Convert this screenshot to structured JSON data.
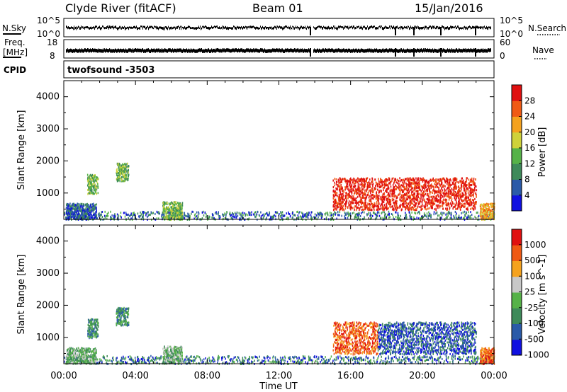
{
  "header": {
    "station": "Clyde River (fitACF)",
    "beam": "Beam 01",
    "date": "15/Jan/2016"
  },
  "top_panels": {
    "nsky_label": "N.Sky",
    "nsky_ticks": [
      "10^5",
      "10^0"
    ],
    "nsearch_label": "N.Search",
    "nsearch_ticks": [
      "10^5",
      "10^0"
    ],
    "freq_label_1": "Freq.",
    "freq_label_2": "[MHz]",
    "freq_ticks": [
      "18",
      "8"
    ],
    "nave_label": "Nave",
    "nave_ticks": [
      "60",
      "0"
    ],
    "cpid_label": "CPID",
    "cpid_value": "twofsound -3503"
  },
  "chart_data": [
    {
      "type": "heatmap",
      "name": "power",
      "ylabel": "Slant Range [km]",
      "ylim": [
        180,
        4500
      ],
      "yticks": [
        "4000",
        "3000",
        "2000",
        "1000"
      ],
      "colorbar_label": "Power [dB]",
      "colorbar_ticks": [
        "28",
        "24",
        "20",
        "16",
        "12",
        "8",
        "4"
      ],
      "colors": [
        "#1010e0",
        "#2a5aa8",
        "#3e8a5a",
        "#56b248",
        "#cfd23a",
        "#f5a21e",
        "#f05a14",
        "#e01010"
      ],
      "echo_regions": [
        {
          "t0": 0.1,
          "t1": 1.8,
          "r0": 200,
          "r1": 700,
          "level": 1
        },
        {
          "t0": 1.3,
          "t1": 1.9,
          "r0": 1000,
          "r1": 1600,
          "level": 3
        },
        {
          "t0": 2.9,
          "t1": 3.6,
          "r0": 1400,
          "r1": 1950,
          "level": 3
        },
        {
          "t0": 5.5,
          "t1": 6.6,
          "r0": 200,
          "r1": 750,
          "level": 3
        },
        {
          "t0": 15.0,
          "t1": 23.0,
          "r0": 500,
          "r1": 1500,
          "level": 7
        },
        {
          "t0": 23.2,
          "t1": 24.0,
          "r0": 200,
          "r1": 700,
          "level": 5
        }
      ]
    },
    {
      "type": "heatmap",
      "name": "velocity",
      "ylabel": "Slant Range [km]",
      "ylim": [
        180,
        4500
      ],
      "yticks": [
        "4000",
        "3000",
        "2000",
        "1000"
      ],
      "colorbar_label": "Velocity [m s^-1]",
      "colorbar_ticks": [
        "1000",
        "500",
        "100",
        "25",
        "-25",
        "-100",
        "-500",
        "-1000"
      ],
      "colors": [
        "#1010e0",
        "#2a5aa8",
        "#3e8a5a",
        "#56b248",
        "#c8c8c8",
        "#f5a21e",
        "#f05a14",
        "#e01010"
      ],
      "echo_regions": [
        {
          "t0": 0.1,
          "t1": 1.8,
          "r0": 200,
          "r1": 700,
          "level": 3
        },
        {
          "t0": 1.3,
          "t1": 1.9,
          "r0": 1000,
          "r1": 1600,
          "level": 2
        },
        {
          "t0": 2.9,
          "t1": 3.6,
          "r0": 1400,
          "r1": 1950,
          "level": 2
        },
        {
          "t0": 5.5,
          "t1": 6.6,
          "r0": 200,
          "r1": 750,
          "level": 3
        },
        {
          "t0": 15.0,
          "t1": 17.5,
          "r0": 500,
          "r1": 1500,
          "level": 6
        },
        {
          "t0": 17.5,
          "t1": 23.0,
          "r0": 500,
          "r1": 1500,
          "level": 1
        },
        {
          "t0": 23.2,
          "t1": 24.0,
          "r0": 200,
          "r1": 700,
          "level": 6
        }
      ]
    }
  ],
  "x_axis": {
    "ticks": [
      "00:00",
      "04:00",
      "08:00",
      "12:00",
      "16:00",
      "20:00",
      "00:00"
    ],
    "label": "Time UT"
  }
}
